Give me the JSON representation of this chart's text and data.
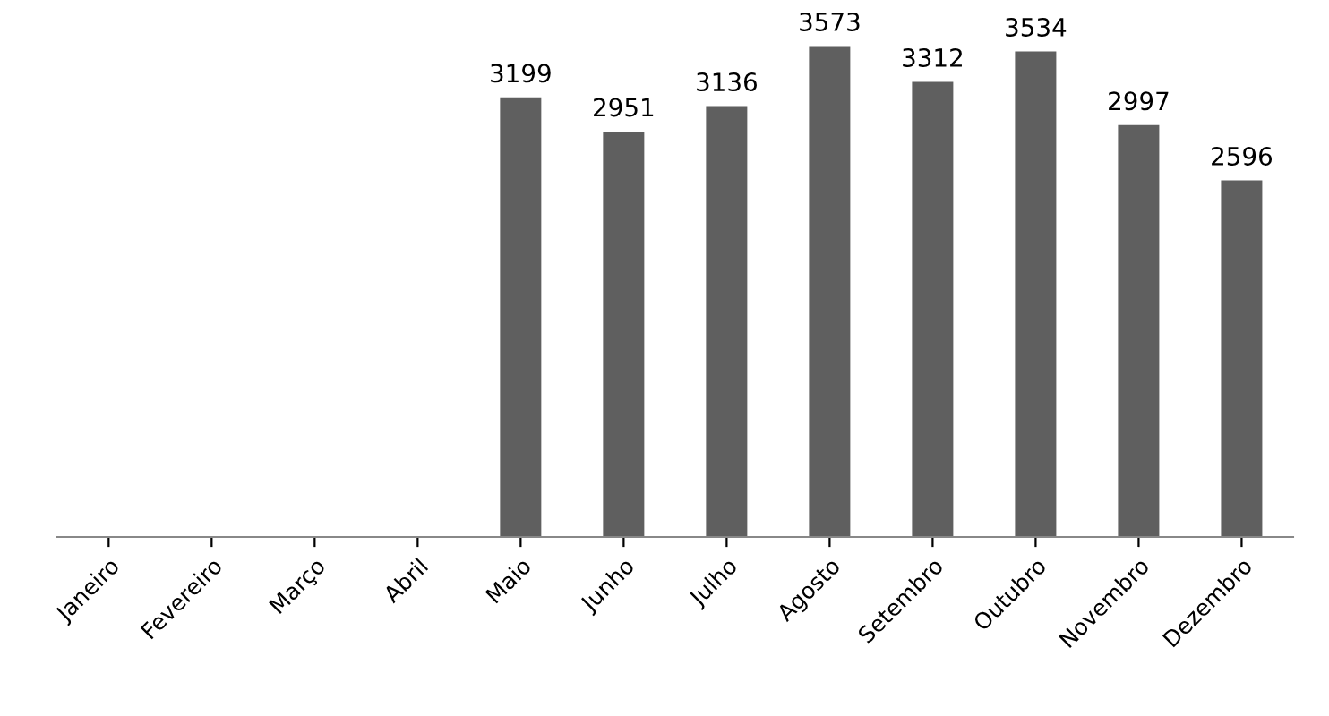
{
  "chart_data": {
    "type": "bar",
    "categories": [
      "Janeiro",
      "Fevereiro",
      "Março",
      "Abril",
      "Maio",
      "Junho",
      "Julho",
      "Agosto",
      "Setembro",
      "Outubro",
      "Novembro",
      "Dezembro"
    ],
    "values": [
      null,
      null,
      null,
      null,
      3199,
      2951,
      3136,
      3573,
      3312,
      3534,
      2997,
      2596
    ],
    "color": "#5f5f5f",
    "data_labels": true,
    "tick_labels": "x",
    "grid": false,
    "legend": false
  }
}
